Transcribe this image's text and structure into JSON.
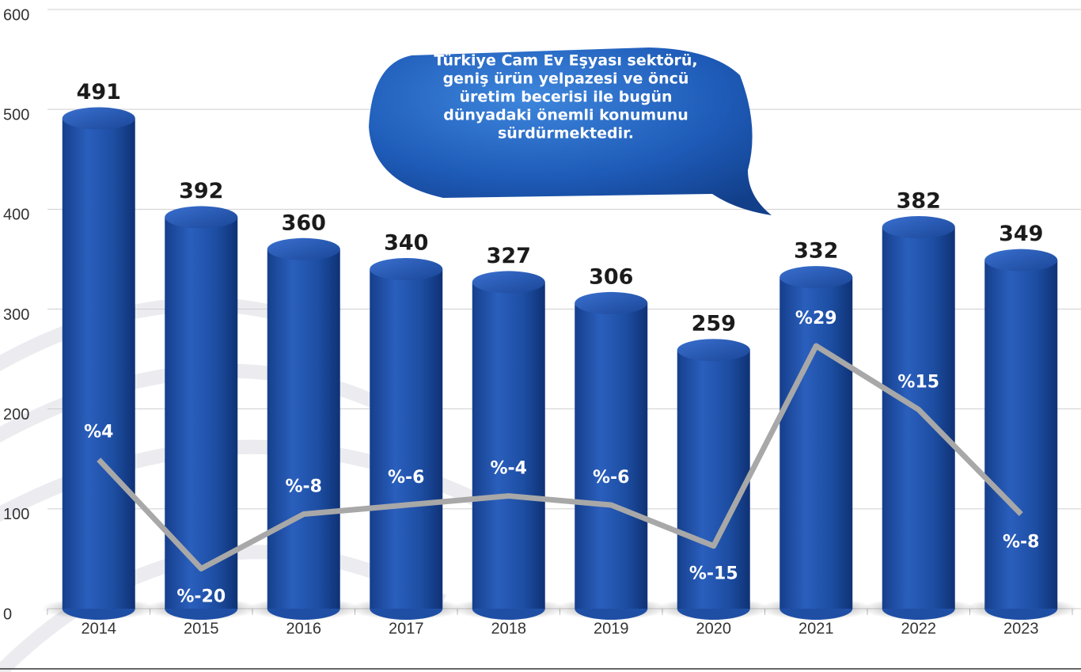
{
  "chart_data": {
    "type": "bar",
    "categories": [
      "2014",
      "2015",
      "2016",
      "2017",
      "2018",
      "2019",
      "2020",
      "2021",
      "2022",
      "2023"
    ],
    "series": [
      {
        "type": "bar",
        "color": "#1f4fa5",
        "values": [
          491,
          392,
          360,
          340,
          327,
          306,
          259,
          332,
          382,
          349
        ]
      },
      {
        "type": "line",
        "axis": "y2",
        "color": "#a8a8a8",
        "values": [
          4,
          -20,
          -8,
          -6,
          -4,
          -6,
          -15,
          29,
          15,
          -8
        ],
        "value_labels": [
          "%4",
          "%-20",
          "%-8",
          "%-6",
          "%-4",
          "%-6",
          "%-15",
          "%29",
          "%15",
          "%-8"
        ]
      }
    ],
    "ylim": [
      0,
      600
    ],
    "yticks": [
      0,
      100,
      200,
      300,
      400,
      500,
      600
    ],
    "y2lim": [
      -28.8,
      103
    ],
    "grid": true,
    "annotation": [
      "Türkiye Cam Ev Eşyası sektörü,",
      "geniş ürün yelpazesi ve öncü",
      "üretim becerisi ile bugün",
      "dünyadaki önemli konumunu",
      "sürdürmektedir."
    ]
  }
}
